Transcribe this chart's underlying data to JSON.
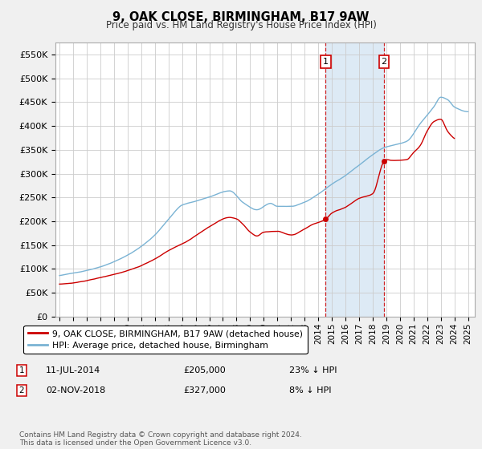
{
  "title": "9, OAK CLOSE, BIRMINGHAM, B17 9AW",
  "subtitle": "Price paid vs. HM Land Registry's House Price Index (HPI)",
  "legend_label_red": "9, OAK CLOSE, BIRMINGHAM, B17 9AW (detached house)",
  "legend_label_blue": "HPI: Average price, detached house, Birmingham",
  "annotation1_date": "11-JUL-2014",
  "annotation1_price": "£205,000",
  "annotation1_hpi": "23% ↓ HPI",
  "annotation2_date": "02-NOV-2018",
  "annotation2_price": "£327,000",
  "annotation2_hpi": "8% ↓ HPI",
  "footer": "Contains HM Land Registry data © Crown copyright and database right 2024.\nThis data is licensed under the Open Government Licence v3.0.",
  "ylim": [
    0,
    575000
  ],
  "yticks": [
    0,
    50000,
    100000,
    150000,
    200000,
    250000,
    300000,
    350000,
    400000,
    450000,
    500000,
    550000
  ],
  "hpi_color": "#7ab3d4",
  "price_color": "#cc0000",
  "shade_color": "#ddeaf5",
  "vline_color": "#cc0000",
  "bg_color": "#f0f0f0",
  "sale1_year": 2014.54,
  "sale1_price": 205000,
  "sale2_year": 2018.84,
  "sale2_price": 327000
}
